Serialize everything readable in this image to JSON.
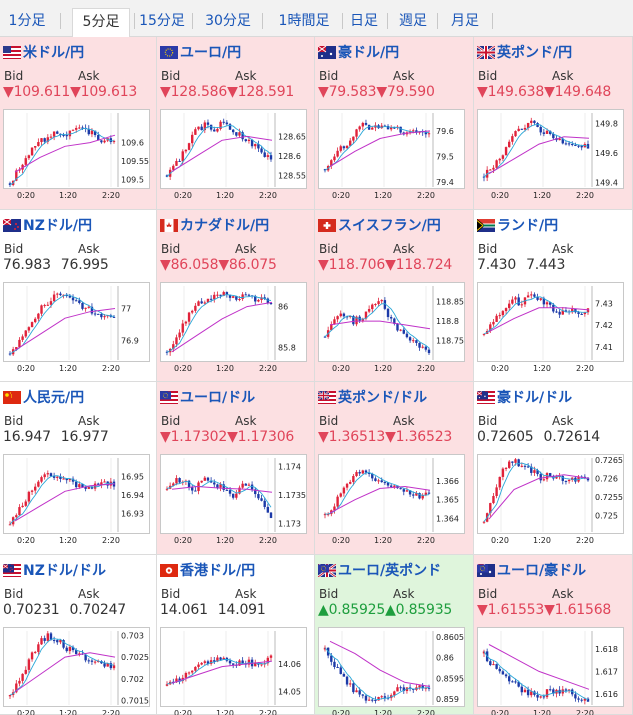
{
  "tabs": [
    {
      "label": "1分足",
      "active": false
    },
    {
      "label": "5分足",
      "active": true
    },
    {
      "label": "15分足",
      "active": false
    },
    {
      "label": "30分足",
      "active": false
    },
    {
      "label": "1時間足",
      "active": false
    },
    {
      "label": "日足",
      "active": false
    },
    {
      "label": "週足",
      "active": false
    },
    {
      "label": "月足",
      "active": false
    }
  ],
  "labels": {
    "bid": "Bid",
    "ask": "Ask"
  },
  "colors": {
    "up_candle": "#e0223a",
    "down_candle": "#1c3aa8",
    "ma_fast": "#2aa8d8",
    "ma_slow": "#c032c8",
    "price_down": "#e0455a",
    "price_up": "#1e9e3e"
  },
  "pairs": [
    {
      "name": "米ドル/円",
      "flag": "us",
      "bid": "109.611",
      "ask": "109.613",
      "dir": "down",
      "bg": "pink",
      "chart_data": {
        "type": "candlestick",
        "ylim": [
          109.48,
          109.68
        ],
        "yticks": [
          "109.6",
          "109.55",
          "109.5"
        ],
        "ytick_values": [
          109.6,
          109.55,
          109.5
        ],
        "xticks": [
          "0:20",
          "1:20",
          "2:20"
        ],
        "path": [
          109.49,
          109.53,
          109.57,
          109.6,
          109.61,
          109.63,
          109.62,
          109.64,
          109.63,
          109.62,
          109.6,
          109.61
        ],
        "ma_slow": [
          109.52,
          109.56,
          109.59,
          109.6,
          109.62
        ]
      }
    },
    {
      "name": "ユーロ/円",
      "flag": "eu",
      "bid": "128.586",
      "ask": "128.591",
      "dir": "down",
      "bg": "pink",
      "chart_data": {
        "type": "candlestick",
        "ylim": [
          128.52,
          128.71
        ],
        "yticks": [
          "128.65",
          "128.6",
          "128.55"
        ],
        "ytick_values": [
          128.65,
          128.6,
          128.55
        ],
        "xticks": [
          "0:20",
          "1:20",
          "2:20"
        ],
        "path": [
          128.55,
          128.58,
          128.62,
          128.66,
          128.68,
          128.67,
          128.69,
          128.66,
          128.65,
          128.63,
          128.61,
          128.59
        ],
        "ma_slow": [
          128.56,
          128.6,
          128.64,
          128.65,
          128.64
        ]
      }
    },
    {
      "name": "豪ドル/円",
      "flag": "au",
      "bid": "79.583",
      "ask": "79.590",
      "dir": "down",
      "bg": "pink",
      "chart_data": {
        "type": "candlestick",
        "ylim": [
          79.38,
          79.67
        ],
        "yticks": [
          "79.6",
          "79.5",
          "79.4"
        ],
        "ytick_values": [
          79.6,
          79.5,
          79.4
        ],
        "xticks": [
          "0:20",
          "1:20",
          "2:20"
        ],
        "path": [
          79.45,
          79.5,
          79.54,
          79.58,
          79.62,
          79.6,
          79.63,
          79.61,
          79.6,
          79.59,
          79.61,
          79.58
        ],
        "ma_slow": [
          79.46,
          79.52,
          79.57,
          79.59,
          79.6
        ]
      }
    },
    {
      "name": "英ポンド/円",
      "flag": "gb",
      "bid": "149.638",
      "ask": "149.648",
      "dir": "down",
      "bg": "pink",
      "chart_data": {
        "type": "candlestick",
        "ylim": [
          149.37,
          149.87
        ],
        "yticks": [
          "149.8",
          "149.6",
          "149.4"
        ],
        "ytick_values": [
          149.8,
          149.6,
          149.4
        ],
        "xticks": [
          "0:20",
          "1:20",
          "2:20"
        ],
        "path": [
          149.44,
          149.52,
          149.6,
          149.7,
          149.78,
          149.8,
          149.76,
          149.72,
          149.7,
          149.66,
          149.64,
          149.64
        ],
        "ma_slow": [
          149.46,
          149.56,
          149.66,
          149.71,
          149.7
        ]
      }
    },
    {
      "name": "NZドル/円",
      "flag": "nz",
      "bid": "76.983",
      "ask": "76.995",
      "dir": "flat",
      "bg": "white",
      "chart_data": {
        "type": "candlestick",
        "ylim": [
          76.84,
          77.07
        ],
        "yticks": [
          "77",
          "76.9"
        ],
        "ytick_values": [
          77.0,
          76.9
        ],
        "xticks": [
          "0:20",
          "1:20",
          "2:20"
        ],
        "path": [
          76.86,
          76.9,
          76.95,
          76.99,
          77.02,
          77.04,
          77.03,
          77.02,
          77.0,
          76.99,
          76.98,
          76.97
        ],
        "ma_slow": [
          76.87,
          76.92,
          76.97,
          76.99,
          77.0
        ]
      }
    },
    {
      "name": "カナダドル/円",
      "flag": "ca",
      "bid": "86.058",
      "ask": "86.075",
      "dir": "down",
      "bg": "pink",
      "chart_data": {
        "type": "candlestick",
        "ylim": [
          85.74,
          86.1
        ],
        "yticks": [
          "86",
          "85.8"
        ],
        "ytick_values": [
          86.0,
          85.8
        ],
        "xticks": [
          "0:20",
          "1:20",
          "2:20"
        ],
        "path": [
          85.78,
          85.86,
          85.94,
          86.0,
          86.03,
          86.05,
          86.06,
          86.04,
          86.05,
          86.04,
          86.03,
          86.03
        ],
        "ma_slow": [
          85.78,
          85.86,
          85.94,
          86.0,
          86.02
        ]
      }
    },
    {
      "name": "スイスフラン/円",
      "flag": "ch",
      "bid": "118.706",
      "ask": "118.724",
      "dir": "down",
      "bg": "pink",
      "chart_data": {
        "type": "candlestick",
        "ylim": [
          118.7,
          118.89
        ],
        "yticks": [
          "118.85",
          "118.8",
          "118.75"
        ],
        "ytick_values": [
          118.85,
          118.8,
          118.75
        ],
        "xticks": [
          "0:20",
          "1:20",
          "2:20"
        ],
        "path": [
          118.76,
          118.8,
          118.82,
          118.8,
          118.81,
          118.84,
          118.85,
          118.8,
          118.77,
          118.75,
          118.73,
          118.72
        ],
        "ma_slow": [
          118.79,
          118.8,
          118.8,
          118.79,
          118.78
        ]
      }
    },
    {
      "name": "ランド/円",
      "flag": "za",
      "bid": "7.430",
      "ask": "7.443",
      "dir": "flat",
      "bg": "white",
      "chart_data": {
        "type": "candlestick",
        "ylim": [
          7.404,
          7.438
        ],
        "yticks": [
          "7.43",
          "7.42",
          "7.41"
        ],
        "ytick_values": [
          7.43,
          7.42,
          7.41
        ],
        "xticks": [
          "0:20",
          "1:20",
          "2:20"
        ],
        "path": [
          7.416,
          7.422,
          7.428,
          7.432,
          7.43,
          7.434,
          7.432,
          7.428,
          7.426,
          7.427,
          7.426,
          7.427
        ],
        "ma_slow": [
          7.417,
          7.423,
          7.428,
          7.428,
          7.427
        ]
      }
    },
    {
      "name": "人民元/円",
      "flag": "cn",
      "bid": "16.947",
      "ask": "16.977",
      "dir": "flat",
      "bg": "white",
      "chart_data": {
        "type": "candlestick",
        "ylim": [
          16.92,
          16.96
        ],
        "yticks": [
          "16.95",
          "16.94",
          "16.93"
        ],
        "ytick_values": [
          16.95,
          16.94,
          16.93
        ],
        "xticks": [
          "0:20",
          "1:20",
          "2:20"
        ],
        "path": [
          16.924,
          16.932,
          16.94,
          16.946,
          16.952,
          16.95,
          16.948,
          16.946,
          16.944,
          16.945,
          16.946,
          16.946
        ],
        "ma_slow": [
          16.926,
          16.934,
          16.942,
          16.945,
          16.946
        ]
      }
    },
    {
      "name": "ユーロ/ドル",
      "flag": "eu-us",
      "bid": "1.17302",
      "ask": "1.17306",
      "dir": "down",
      "bg": "pink",
      "chart_data": {
        "type": "candlestick",
        "ylim": [
          1.17285,
          1.17415
        ],
        "yticks": [
          "1.174",
          "1.1735",
          "1.173"
        ],
        "ytick_values": [
          1.174,
          1.1735,
          1.173
        ],
        "xticks": [
          "0:20",
          "1:20",
          "2:20"
        ],
        "path": [
          1.1736,
          1.1738,
          1.1737,
          1.1736,
          1.1738,
          1.1737,
          1.1736,
          1.1735,
          1.1737,
          1.1736,
          1.1734,
          1.1731
        ],
        "ma_slow": [
          1.1736,
          1.17365,
          1.17362,
          1.1736,
          1.17355
        ]
      }
    },
    {
      "name": "英ポンド/ドル",
      "flag": "gb-us",
      "bid": "1.36513",
      "ask": "1.36523",
      "dir": "down",
      "bg": "pink",
      "chart_data": {
        "type": "candlestick",
        "ylim": [
          1.3633,
          1.3672
        ],
        "yticks": [
          "1.366",
          "1.365",
          "1.364"
        ],
        "ytick_values": [
          1.366,
          1.365,
          1.364
        ],
        "xticks": [
          "0:20",
          "1:20",
          "2:20"
        ],
        "path": [
          1.3642,
          1.3648,
          1.3655,
          1.3662,
          1.3665,
          1.3662,
          1.366,
          1.3658,
          1.3655,
          1.3654,
          1.3652,
          1.3652
        ],
        "ma_slow": [
          1.3643,
          1.365,
          1.3656,
          1.3657,
          1.3655
        ]
      }
    },
    {
      "name": "豪ドル/ドル",
      "flag": "au-us",
      "bid": "0.72605",
      "ask": "0.72614",
      "dir": "flat",
      "bg": "white",
      "chart_data": {
        "type": "candlestick",
        "ylim": [
          0.72455,
          0.72655
        ],
        "yticks": [
          "0.7265",
          "0.726",
          "0.7255",
          "0.725"
        ],
        "ytick_values": [
          0.7265,
          0.726,
          0.7255,
          0.725
        ],
        "xticks": [
          "0:20",
          "1:20",
          "2:20"
        ],
        "path": [
          0.7248,
          0.7255,
          0.7262,
          0.7265,
          0.7263,
          0.7262,
          0.726,
          0.7261,
          0.726,
          0.7259,
          0.726,
          0.726
        ],
        "ma_slow": [
          0.7249,
          0.7257,
          0.726,
          0.7261,
          0.726
        ]
      }
    },
    {
      "name": "NZドル/ドル",
      "flag": "nz-us",
      "bid": "0.70231",
      "ask": "0.70247",
      "dir": "flat",
      "bg": "white",
      "chart_data": {
        "type": "candlestick",
        "ylim": [
          0.7014,
          0.7031
        ],
        "yticks": [
          "0.703",
          "0.7025",
          "0.702",
          "0.7015"
        ],
        "ytick_values": [
          0.703,
          0.7025,
          0.702,
          0.7015
        ],
        "xticks": [
          "0:20",
          "1:20",
          "2:20"
        ],
        "path": [
          0.7016,
          0.702,
          0.7024,
          0.7028,
          0.703,
          0.7029,
          0.7027,
          0.7026,
          0.7025,
          0.7024,
          0.7023,
          0.7023
        ],
        "ma_slow": [
          0.7017,
          0.7021,
          0.7025,
          0.7026,
          0.7025
        ]
      }
    },
    {
      "name": "香港ドル/円",
      "flag": "hk",
      "bid": "14.061",
      "ask": "14.091",
      "dir": "flat",
      "bg": "white",
      "chart_data": {
        "type": "candlestick",
        "ylim": [
          14.045,
          14.072
        ],
        "yticks": [
          "14.06",
          "14.05"
        ],
        "ytick_values": [
          14.06,
          14.05
        ],
        "xticks": [
          "0:20",
          "1:20",
          "2:20"
        ],
        "path": [
          14.052,
          14.054,
          14.056,
          14.058,
          14.06,
          14.062,
          14.061,
          14.06,
          14.061,
          14.06,
          14.061,
          14.062
        ],
        "ma_slow": [
          14.053,
          14.056,
          14.059,
          14.06,
          14.061
        ]
      }
    },
    {
      "name": "ユーロ/英ポンド",
      "flag": "eu-gb",
      "bid": "0.85925",
      "ask": "0.85935",
      "dir": "up",
      "bg": "green",
      "chart_data": {
        "type": "candlestick",
        "ylim": [
          0.85885,
          0.86065
        ],
        "yticks": [
          "0.8605",
          "0.86",
          "0.8595",
          "0.859"
        ],
        "ytick_values": [
          0.8605,
          0.86,
          0.8595,
          0.859
        ],
        "xticks": [
          "0:20",
          "1:20",
          "2:20"
        ],
        "path": [
          0.8602,
          0.8598,
          0.8595,
          0.8592,
          0.859,
          0.8589,
          0.859,
          0.8591,
          0.8593,
          0.8592,
          0.8593,
          0.8593
        ],
        "ma_slow": [
          0.8604,
          0.8601,
          0.8597,
          0.8594,
          0.8593
        ]
      }
    },
    {
      "name": "ユーロ/豪ドル",
      "flag": "eu-au",
      "bid": "1.61553",
      "ask": "1.61568",
      "dir": "down",
      "bg": "pink",
      "chart_data": {
        "type": "candlestick",
        "ylim": [
          1.6155,
          1.6188
        ],
        "yticks": [
          "1.618",
          "1.617",
          "1.616"
        ],
        "ytick_values": [
          1.618,
          1.617,
          1.616
        ],
        "xticks": [
          "0:20",
          "1:20",
          "2:20"
        ],
        "path": [
          1.6178,
          1.6172,
          1.6168,
          1.6165,
          1.6162,
          1.616,
          1.6158,
          1.6162,
          1.616,
          1.6162,
          1.6158,
          1.6156
        ],
        "ma_slow": [
          1.6182,
          1.6176,
          1.617,
          1.6166,
          1.6162
        ]
      }
    }
  ]
}
